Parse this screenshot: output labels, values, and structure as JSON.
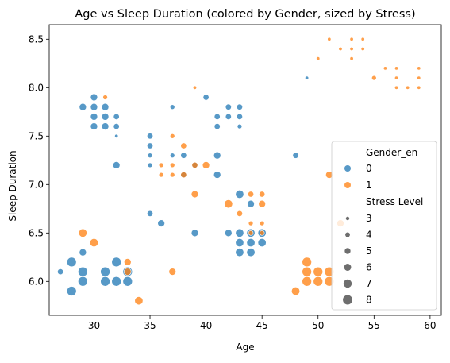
{
  "chart_data": {
    "type": "scatter",
    "title": "Age vs Sleep Duration (colored by Gender, sized by Stress)",
    "xlabel": "Age",
    "ylabel": "Sleep Duration",
    "xlim": [
      26,
      61
    ],
    "ylim": [
      5.65,
      8.65
    ],
    "xticks": [
      "30",
      "35",
      "40",
      "45",
      "50",
      "55",
      "60"
    ],
    "yticks": [
      "6.0",
      "6.5",
      "7.0",
      "7.5",
      "8.0",
      "8.5"
    ],
    "xtick_values": [
      30,
      35,
      40,
      45,
      50,
      55,
      60
    ],
    "ytick_values": [
      6.0,
      6.5,
      7.0,
      7.5,
      8.0,
      8.5
    ],
    "grid": false,
    "legend_placement": "lower-right",
    "colors": {
      "0": "#1f77b4",
      "1": "#ff7f0e"
    },
    "legend": {
      "hue_title": "Gender_en",
      "hue_labels": [
        "0",
        "1"
      ],
      "size_title": "Stress Level",
      "size_labels": [
        "3",
        "4",
        "5",
        "6",
        "7",
        "8"
      ],
      "size_values": [
        3,
        4,
        5,
        6,
        7,
        8
      ]
    },
    "series": [
      {
        "name": "0",
        "points": [
          [
            27,
            6.1,
            5
          ],
          [
            28,
            6.2,
            8
          ],
          [
            28,
            5.9,
            8
          ],
          [
            29,
            6.1,
            8
          ],
          [
            29,
            6.0,
            8
          ],
          [
            29,
            6.3,
            6
          ],
          [
            29,
            7.8,
            6
          ],
          [
            30,
            7.9,
            6
          ],
          [
            30,
            7.8,
            6
          ],
          [
            30,
            7.7,
            6
          ],
          [
            30,
            7.6,
            6
          ],
          [
            31,
            7.8,
            6
          ],
          [
            31,
            7.7,
            6
          ],
          [
            31,
            7.6,
            6
          ],
          [
            31,
            6.1,
            8
          ],
          [
            31,
            6.0,
            8
          ],
          [
            32,
            7.7,
            5
          ],
          [
            32,
            7.6,
            5
          ],
          [
            32,
            7.5,
            3
          ],
          [
            32,
            7.2,
            6
          ],
          [
            32,
            6.2,
            8
          ],
          [
            32,
            6.0,
            8
          ],
          [
            33,
            6.1,
            8
          ],
          [
            33,
            6.0,
            8
          ],
          [
            35,
            7.5,
            5
          ],
          [
            35,
            7.4,
            5
          ],
          [
            35,
            7.3,
            4
          ],
          [
            35,
            7.2,
            4
          ],
          [
            35,
            6.7,
            5
          ],
          [
            36,
            6.6,
            6
          ],
          [
            37,
            7.8,
            4
          ],
          [
            37,
            7.3,
            4
          ],
          [
            38,
            7.3,
            5
          ],
          [
            38,
            7.1,
            5
          ],
          [
            39,
            7.2,
            5
          ],
          [
            39,
            6.5,
            6
          ],
          [
            40,
            7.9,
            5
          ],
          [
            41,
            7.7,
            5
          ],
          [
            41,
            7.6,
            5
          ],
          [
            41,
            7.3,
            6
          ],
          [
            41,
            7.1,
            6
          ],
          [
            42,
            7.8,
            5
          ],
          [
            42,
            7.7,
            5
          ],
          [
            42,
            6.5,
            6
          ],
          [
            43,
            7.8,
            5
          ],
          [
            43,
            7.7,
            5
          ],
          [
            43,
            7.6,
            4
          ],
          [
            43,
            6.9,
            7
          ],
          [
            43,
            6.5,
            7
          ],
          [
            43,
            6.4,
            7
          ],
          [
            43,
            6.3,
            7
          ],
          [
            44,
            6.8,
            6
          ],
          [
            44,
            6.5,
            7
          ],
          [
            44,
            6.4,
            7
          ],
          [
            44,
            6.3,
            7
          ],
          [
            45,
            6.5,
            7
          ],
          [
            45,
            6.4,
            7
          ],
          [
            48,
            7.3,
            5
          ],
          [
            49,
            8.1,
            3
          ]
        ]
      },
      {
        "name": "1",
        "points": [
          [
            29,
            6.5,
            7
          ],
          [
            30,
            6.4,
            7
          ],
          [
            31,
            7.9,
            4
          ],
          [
            33,
            6.2,
            6
          ],
          [
            33,
            6.1,
            6
          ],
          [
            34,
            5.8,
            7
          ],
          [
            36,
            7.2,
            4
          ],
          [
            36,
            7.1,
            4
          ],
          [
            37,
            7.5,
            4
          ],
          [
            37,
            7.2,
            4
          ],
          [
            37,
            7.1,
            4
          ],
          [
            37,
            6.1,
            6
          ],
          [
            38,
            7.4,
            5
          ],
          [
            38,
            7.1,
            5
          ],
          [
            39,
            8.0,
            3
          ],
          [
            39,
            7.2,
            5
          ],
          [
            39,
            6.9,
            6
          ],
          [
            40,
            7.2,
            6
          ],
          [
            42,
            6.8,
            7
          ],
          [
            43,
            6.7,
            5
          ],
          [
            44,
            6.9,
            5
          ],
          [
            44,
            6.6,
            4
          ],
          [
            44,
            6.5,
            4
          ],
          [
            45,
            6.9,
            5
          ],
          [
            45,
            6.8,
            6
          ],
          [
            45,
            6.6,
            4
          ],
          [
            45,
            6.5,
            4
          ],
          [
            48,
            5.9,
            7
          ],
          [
            49,
            6.2,
            8
          ],
          [
            49,
            6.1,
            8
          ],
          [
            49,
            6.0,
            8
          ],
          [
            50,
            6.1,
            8
          ],
          [
            50,
            6.0,
            8
          ],
          [
            50,
            8.3,
            3
          ],
          [
            51,
            8.5,
            3
          ],
          [
            51,
            7.1,
            6
          ],
          [
            51,
            6.1,
            8
          ],
          [
            51,
            6.0,
            8
          ],
          [
            52,
            8.4,
            3
          ],
          [
            52,
            6.6,
            6
          ],
          [
            53,
            8.5,
            3
          ],
          [
            53,
            8.4,
            3
          ],
          [
            53,
            8.3,
            3
          ],
          [
            54,
            8.5,
            3
          ],
          [
            54,
            8.4,
            3
          ],
          [
            55,
            8.1,
            4
          ],
          [
            56,
            8.2,
            3
          ],
          [
            57,
            8.2,
            3
          ],
          [
            57,
            8.1,
            3
          ],
          [
            57,
            8.0,
            3
          ],
          [
            58,
            8.0,
            3
          ],
          [
            59,
            8.2,
            3
          ],
          [
            59,
            8.1,
            3
          ],
          [
            59,
            8.0,
            3
          ]
        ]
      }
    ]
  }
}
